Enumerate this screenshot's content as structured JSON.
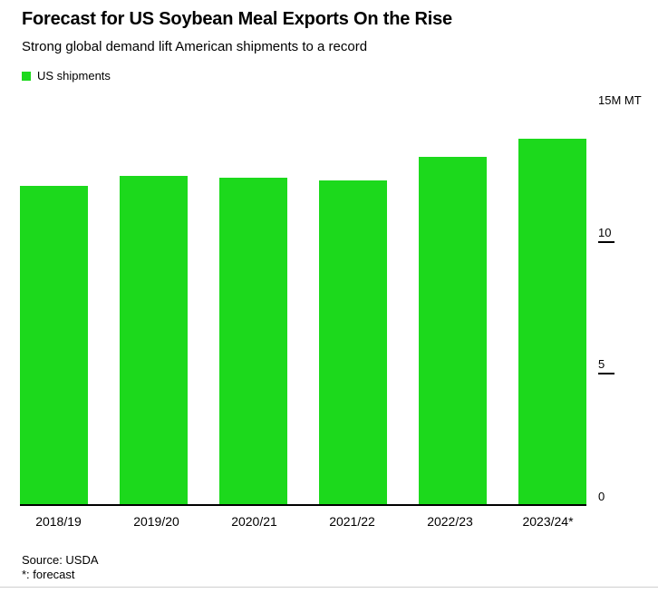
{
  "header": {
    "title": "Forecast for US Soybean Meal Exports On the Rise",
    "subtitle": "Strong global demand lift American shipments to a record"
  },
  "legend": {
    "label": "US shipments",
    "swatch_color": "#1cd91c"
  },
  "chart_data": {
    "type": "bar",
    "series_name": "US shipments",
    "categories": [
      "2018/19",
      "2019/20",
      "2020/21",
      "2021/22",
      "2022/23",
      "2023/24*"
    ],
    "values": [
      12.1,
      12.5,
      12.4,
      12.3,
      13.2,
      13.9
    ],
    "bar_color": "#1cd91c",
    "title": "Forecast for US Soybean Meal Exports On the Rise",
    "xlabel": "",
    "ylabel": "M MT",
    "ylim": [
      0,
      15
    ],
    "yticks": [
      {
        "label": "15M MT",
        "value": 15,
        "tick": false
      },
      {
        "label": "10",
        "value": 10,
        "tick": true
      },
      {
        "label": "5",
        "value": 5,
        "tick": true
      },
      {
        "label": "0",
        "value": 0,
        "tick": false
      }
    ],
    "grid": false,
    "legend_position": "top-left",
    "axis_side": "right"
  },
  "footer": {
    "source": "Source: USDA",
    "note": "*: forecast"
  }
}
